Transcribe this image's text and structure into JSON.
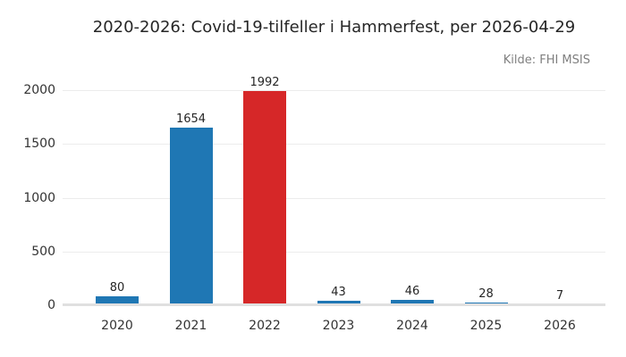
{
  "chart": {
    "title": "2020-2026: Covid-19-tilfeller i Hammerfest, per 2026-04-29",
    "source": "Kilde: FHI MSIS"
  },
  "chart_data": {
    "type": "bar",
    "title": "2020-2026: Covid-19-tilfeller i Hammerfest, per 2026-04-29",
    "annotation": "Kilde: FHI MSIS",
    "categories": [
      "2020",
      "2021",
      "2022",
      "2023",
      "2024",
      "2025",
      "2026"
    ],
    "values": [
      80,
      1654,
      1992,
      43,
      46,
      28,
      7
    ],
    "bar_colors": [
      "#1f77b4",
      "#1f77b4",
      "#d62728",
      "#1f77b4",
      "#1f77b4",
      "#1f77b4",
      "#1f77b4"
    ],
    "value_labels": [
      "80",
      "1654",
      "1992",
      "43",
      "46",
      "28",
      "7"
    ],
    "xlabel": "",
    "ylabel": "",
    "yticks": [
      0,
      500,
      1000,
      1500,
      2000
    ],
    "ylim": [
      0,
      2000
    ],
    "grid": true,
    "legend_position": "none"
  },
  "colors": {
    "bar_blue": "#1f77b4",
    "bar_red": "#d62728",
    "gridline": "#ececec",
    "axis_line": "#e0e0e0",
    "tick_text": "#333333",
    "title_text": "#262626",
    "source_text": "#7f7f7f",
    "background": "#ffffff"
  }
}
